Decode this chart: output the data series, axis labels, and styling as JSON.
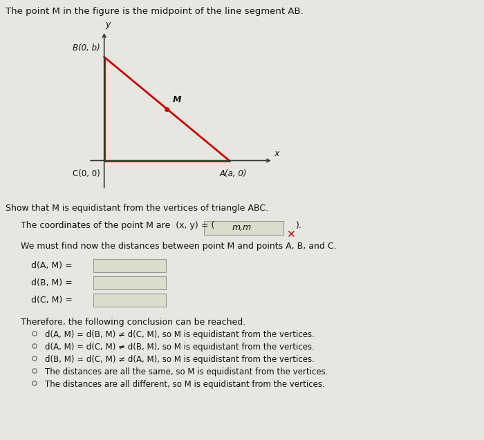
{
  "title": "The point M in the figure is the midpoint of the line segment AB.",
  "background_color": "#c8c8c8",
  "panel_color": "#e8e6e0",
  "triangle_color": "#cc0000",
  "axis_color": "#333333",
  "text_color": "#111111",
  "point_B": [
    0,
    1
  ],
  "point_A": [
    2,
    0
  ],
  "point_C": [
    0,
    0
  ],
  "point_M": [
    1,
    0.5
  ],
  "label_B": "B(0, b)",
  "label_A": "A(a, 0)",
  "label_C": "C(0, 0)",
  "label_M": "M",
  "label_x": "x",
  "label_y": "y",
  "show_that_text": "Show that M is equidistant from the vertices of triangle ABC.",
  "coords_pre": "The coordinates of the point M are  (x, y) = (",
  "coords_value": "m,m",
  "we_must_text": "We must find now the distances between point M and points A, B, and C.",
  "dA_label": "d(A, M) =",
  "dB_label": "d(B, M) =",
  "dC_label": "d(C, M) =",
  "therefore_text": "Therefore, the following conclusion can be reached.",
  "options": [
    "d(A, M) = d(B, M) ≠ d(C, M), so M is equidistant from the vertices.",
    "d(A, M) = d(C, M) ≠ d(B, M), so M is equidistant from the vertices.",
    "d(B, M) = d(C, M) ≠ d(A, M), so M is equidistant from the vertices.",
    "The distances are all the same, so M is equidistant from the vertices.",
    "The distances are all different, so M is equidistant from the vertices."
  ],
  "x_red": "#cc0000",
  "box_fill": "#dcdccc",
  "box_edge": "#999999"
}
